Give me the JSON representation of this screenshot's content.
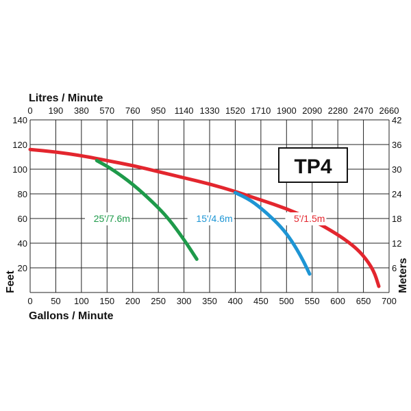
{
  "chart_data": {
    "type": "line",
    "title": "TP4",
    "xlabel": "Gallons / Minute",
    "ylabel": "Feet",
    "x2label": "Litres / Minute",
    "y2label": "Meters",
    "xlim": [
      0,
      700
    ],
    "ylim": [
      0,
      140
    ],
    "xticks": [
      "0",
      "50",
      "100",
      "150",
      "200",
      "250",
      "300",
      "350",
      "400",
      "450",
      "500",
      "550",
      "600",
      "650",
      "700"
    ],
    "x2ticks": [
      "0",
      "190",
      "380",
      "570",
      "760",
      "950",
      "1140",
      "1330",
      "1520",
      "1710",
      "1900",
      "2090",
      "2280",
      "2470",
      "2660"
    ],
    "yticks": [
      "20",
      "40",
      "60",
      "80",
      "100",
      "120",
      "140"
    ],
    "y2ticks": [
      "6",
      "12",
      "18",
      "24",
      "30",
      "36",
      "42"
    ],
    "grid": true,
    "series": [
      {
        "name": "5'/1.5m",
        "color": "#e3262e",
        "x": [
          0,
          50,
          100,
          150,
          200,
          250,
          300,
          350,
          400,
          450,
          500,
          550,
          600,
          630,
          650,
          670,
          680
        ],
        "y": [
          116,
          114,
          111,
          107,
          103,
          98,
          93,
          88,
          82,
          75,
          68,
          59,
          47,
          38,
          30,
          18,
          5
        ]
      },
      {
        "name": "15'/4.6m",
        "color": "#1e95d4",
        "x": [
          400,
          430,
          460,
          490,
          510,
          530,
          545
        ],
        "y": [
          81,
          75,
          65,
          53,
          42,
          28,
          15
        ]
      },
      {
        "name": "25'/7.6m",
        "color": "#1e9a4a",
        "x": [
          130,
          160,
          200,
          240,
          270,
          300,
          325
        ],
        "y": [
          107,
          100,
          88,
          73,
          60,
          43,
          27
        ]
      }
    ]
  }
}
